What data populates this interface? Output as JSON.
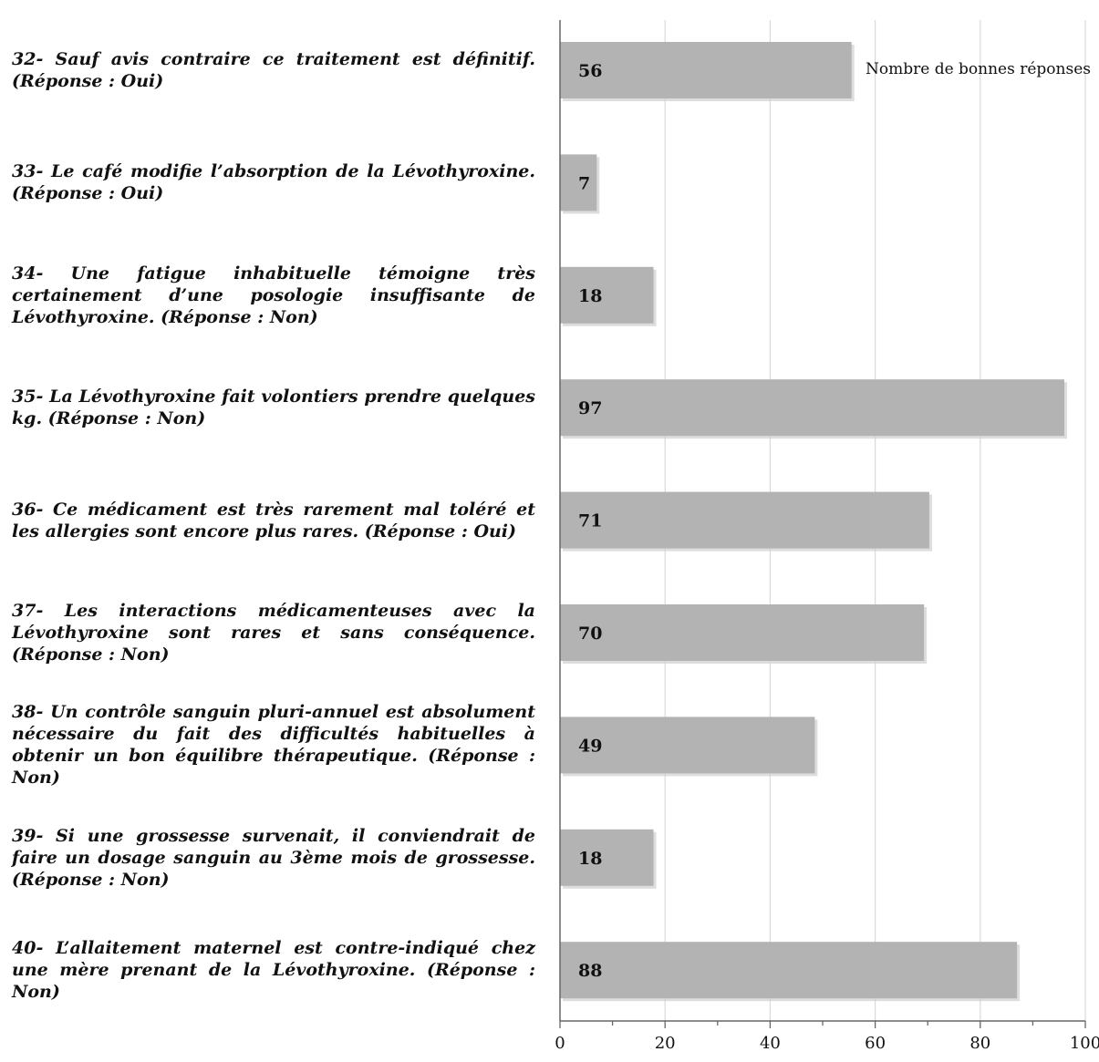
{
  "chart_data": {
    "type": "bar",
    "orientation": "horizontal",
    "categories": [
      "32- Sauf avis contraire ce traitement est définitif. (Réponse : Oui)",
      "33- Le café modifie l’absorption de la Lévothyroxine. (Réponse : Oui)",
      "34- Une fatigue inhabituelle témoigne très certainement d’une posologie insuffisante de Lévothyroxine. (Réponse : Non)",
      "35- La Lévothyroxine fait volontiers prendre quelques kg. (Réponse : Non)",
      "36- Ce médicament est très rarement mal toléré et les allergies sont encore plus rares. (Réponse : Oui)",
      "37- Les interactions médicamenteuses avec la Lévothyroxine sont rares et sans conséquence. (Réponse : Non)",
      "38- Un contrôle sanguin pluri-annuel est absolument nécessaire du fait des difficultés habituelles à obtenir un bon équilibre thérapeutique. (Réponse : Non)",
      "39- Si une grossesse survenait, il conviendrait de faire un dosage sanguin au 3ème mois de grossesse. (Réponse : Non)",
      "40- L’allaitement maternel est contre-indiqué chez une mère prenant de la Lévothyroxine. (Réponse : Non)"
    ],
    "series": [
      {
        "name": "Nombre de bonnes réponses",
        "values": [
          56,
          7,
          18,
          97,
          71,
          70,
          49,
          18,
          88
        ],
        "data_labels": [
          "56",
          "7",
          "18",
          "97",
          "71",
          "70",
          "49",
          "18",
          "88"
        ]
      }
    ],
    "display_values": [
      55.5,
      7,
      17.8,
      96,
      70.3,
      69.3,
      48.5,
      17.8,
      87
    ],
    "xlim": [
      0,
      100
    ],
    "x_ticks": [
      0,
      20,
      40,
      60,
      80,
      100
    ],
    "x_tick_labels": [
      "0",
      "20",
      "40",
      "60",
      "80",
      "100"
    ],
    "grid": true,
    "legend": "top-right",
    "colors": {
      "bar": "#b3b3b3",
      "grid": "#d9d9d9",
      "axis": "#666666",
      "text": "#111111"
    }
  }
}
